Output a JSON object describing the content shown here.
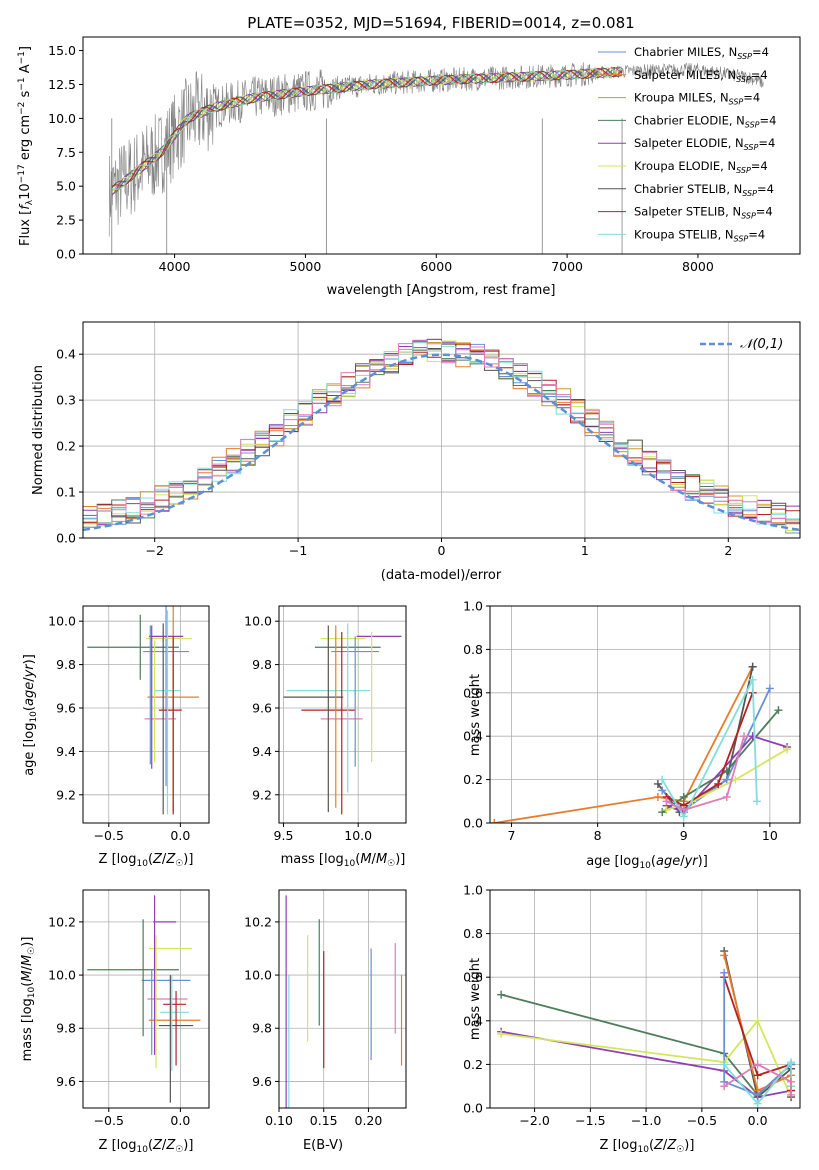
{
  "chart_data": [
    {
      "id": "spectrum",
      "type": "line",
      "title": "PLATE=0352, MJD=51694, FIBERID=0014, z=0.081",
      "xlabel": "wavelength [Angstrom, rest frame]",
      "ylabel": "Flux [f_λ 10^-17 erg cm^-2 s^-1 A^-1]",
      "xlim": [
        3300,
        8780
      ],
      "ylim": [
        0,
        16
      ],
      "xticks": [
        4000,
        5000,
        6000,
        7000,
        8000
      ],
      "yticks": [
        0.0,
        2.5,
        5.0,
        7.5,
        10.0,
        12.5,
        15.0
      ],
      "legend_position": "right",
      "legend": [
        {
          "label": "Chabrier MILES, N_SSP=4",
          "color": "#6b8fd6"
        },
        {
          "label": "Salpeter MILES, N_SSP=4",
          "color": "#e87c2b"
        },
        {
          "label": "Kroupa MILES, N_SSP=4",
          "color": "#c99a2e"
        },
        {
          "label": "Chabrier ELODIE, N_SSP=4",
          "color": "#4e7d5b"
        },
        {
          "label": "Salpeter ELODIE, N_SSP=4",
          "color": "#8e3fb0"
        },
        {
          "label": "Kroupa ELODIE, N_SSP=4",
          "color": "#d4e65c"
        },
        {
          "label": "Chabrier STELIB, N_SSP=4",
          "color": "#555555"
        },
        {
          "label": "Salpeter STELIB, N_SSP=4",
          "color": "#b22222"
        },
        {
          "label": "Kroupa STELIB, N_SSP=4",
          "color": "#80dede"
        }
      ],
      "data_color": "#808080",
      "continuum": {
        "x": [
          3500,
          3700,
          3900,
          4100,
          4300,
          4600,
          5000,
          5500,
          6000,
          6500,
          7000,
          7500,
          8000,
          8400,
          8500
        ],
        "y": [
          4.5,
          6.0,
          7.5,
          10.0,
          10.8,
          11.5,
          12.0,
          12.5,
          12.8,
          13.0,
          13.2,
          13.5,
          13.6,
          13.0,
          12.6
        ]
      }
    },
    {
      "id": "residuals",
      "type": "histogram",
      "xlabel": "(data-model)/error",
      "ylabel": "Normed distribution",
      "xlim": [
        -2.5,
        2.5
      ],
      "ylim": [
        0,
        0.47
      ],
      "xticks": [
        -2,
        -1,
        0,
        1,
        2
      ],
      "yticks": [
        0.0,
        0.1,
        0.2,
        0.3,
        0.4
      ],
      "grid": true,
      "legend_position": "top-right",
      "gaussian_label": "𝒩(0,1)",
      "gaussian_color": "#5b8fd6",
      "bin_width": 0.1
    },
    {
      "id": "age-vs-Z",
      "type": "errorbar",
      "xlabel": "Z [log10(Z/Z☉)]",
      "ylabel": "age [log10(age/yr)]",
      "xlim": [
        -0.68,
        0.2
      ],
      "ylim": [
        9.07,
        10.07
      ],
      "xticks": [
        -0.5,
        0.0
      ],
      "yticks": [
        9.2,
        9.4,
        9.6,
        9.8,
        10.0
      ],
      "points": [
        {
          "x": -0.33,
          "y": 9.88,
          "xerr": 0.32,
          "yerr": 0.0,
          "color": "#4e7d5b"
        },
        {
          "x": -0.1,
          "y": 9.86,
          "xerr": 0.16,
          "yerr": 0.62,
          "color": "#6b8fd6"
        },
        {
          "x": -0.05,
          "y": 9.65,
          "xerr": 0.18,
          "yerr": 0.53,
          "color": "#e87c2b"
        },
        {
          "x": -0.1,
          "y": 9.93,
          "xerr": 0.12,
          "yerr": 0.0,
          "color": "#8e3fb0"
        },
        {
          "x": -0.08,
          "y": 9.92,
          "xerr": 0.16,
          "yerr": 0.0,
          "color": "#d4e65c"
        },
        {
          "x": -0.07,
          "y": 9.59,
          "xerr": 0.08,
          "yerr": 0.0,
          "color": "#b22222"
        },
        {
          "x": -0.09,
          "y": 9.68,
          "xerr": 0.09,
          "yerr": 0.0,
          "color": "#80dede"
        },
        {
          "x": -0.14,
          "y": 9.55,
          "xerr": 0.11,
          "yerr": 0.0,
          "color": "#e07cb8"
        },
        {
          "x": -0.28,
          "y": 9.88,
          "xerr": 0.0,
          "yerr": 0.15,
          "color": "#4e7d5b"
        },
        {
          "x": -0.21,
          "y": 9.66,
          "xerr": 0.0,
          "yerr": 0.32,
          "color": "#6b8fd6"
        },
        {
          "x": -0.2,
          "y": 9.65,
          "xerr": 0.0,
          "yerr": 0.33,
          "color": "#8e3fb0"
        },
        {
          "x": -0.18,
          "y": 9.63,
          "xerr": 0.0,
          "yerr": 0.28,
          "color": "#d4e65c"
        },
        {
          "x": -0.12,
          "y": 9.55,
          "xerr": 0.0,
          "yerr": 0.44,
          "color": "#555555"
        },
        {
          "x": -0.05,
          "y": 9.52,
          "xerr": 0.0,
          "yerr": 0.41,
          "color": "#b22222"
        },
        {
          "x": -0.09,
          "y": 9.58,
          "xerr": 0.0,
          "yerr": 0.47,
          "color": "#80dede"
        }
      ]
    },
    {
      "id": "age-vs-mass",
      "type": "errorbar",
      "xlabel": "mass [log10(M/M☉)]",
      "ylabel": "",
      "xlim": [
        9.47,
        10.32
      ],
      "ylim": [
        9.07,
        10.07
      ],
      "xticks": [
        9.5,
        10.0
      ],
      "yticks": [
        9.2,
        9.4,
        9.6,
        9.8,
        10.0
      ],
      "points": [
        {
          "x": 9.98,
          "y": 9.86,
          "xerr": 0.16,
          "yerr": 0.0,
          "color": "#6b8fd6"
        },
        {
          "x": 10.14,
          "y": 9.93,
          "xerr": 0.15,
          "yerr": 0.0,
          "color": "#8e3fb0"
        },
        {
          "x": 9.9,
          "y": 9.92,
          "xerr": 0.15,
          "yerr": 0.0,
          "color": "#d4e65c"
        },
        {
          "x": 9.93,
          "y": 9.88,
          "xerr": 0.22,
          "yerr": 0.0,
          "color": "#4e7d5b"
        },
        {
          "x": 9.8,
          "y": 9.68,
          "xerr": 0.28,
          "yerr": 0.0,
          "color": "#80dede"
        },
        {
          "x": 9.7,
          "y": 9.65,
          "xerr": 0.2,
          "yerr": 0.0,
          "color": "#555555"
        },
        {
          "x": 9.8,
          "y": 9.59,
          "xerr": 0.18,
          "yerr": 0.0,
          "color": "#b22222"
        },
        {
          "x": 9.89,
          "y": 9.55,
          "xerr": 0.14,
          "yerr": 0.0,
          "color": "#e07cb8"
        },
        {
          "x": 9.8,
          "y": 9.55,
          "xerr": 0.0,
          "yerr": 0.43,
          "color": "#555555"
        },
        {
          "x": 9.85,
          "y": 9.56,
          "xerr": 0.0,
          "yerr": 0.42,
          "color": "#e87c2b"
        },
        {
          "x": 9.89,
          "y": 9.53,
          "xerr": 0.0,
          "yerr": 0.42,
          "color": "#b22222"
        },
        {
          "x": 9.93,
          "y": 9.6,
          "xerr": 0.0,
          "yerr": 0.39,
          "color": "#80dede"
        },
        {
          "x": 9.98,
          "y": 9.63,
          "xerr": 0.0,
          "yerr": 0.3,
          "color": "#6b8fd6"
        },
        {
          "x": 10.09,
          "y": 9.65,
          "xerr": 0.0,
          "yerr": 0.3,
          "color": "#d4e65c"
        }
      ]
    },
    {
      "id": "weight-vs-age",
      "type": "line",
      "xlabel": "age [log10(age/yr)]",
      "ylabel": "mass weight",
      "xlim": [
        6.75,
        10.35
      ],
      "ylim": [
        0.0,
        1.0
      ],
      "xticks": [
        7,
        8,
        9,
        10
      ],
      "yticks": [
        0.0,
        0.2,
        0.4,
        0.6,
        0.8,
        1.0
      ],
      "grid": true,
      "series": [
        {
          "color": "#e87c2b",
          "x": [
            6.8,
            8.7,
            9.0,
            9.8
          ],
          "y": [
            0.0,
            0.12,
            0.1,
            0.72
          ]
        },
        {
          "color": "#555555",
          "x": [
            8.7,
            8.95,
            9.5,
            9.8
          ],
          "y": [
            0.18,
            0.05,
            0.2,
            0.72
          ]
        },
        {
          "color": "#6b8fd6",
          "x": [
            8.75,
            9.0,
            9.5,
            10.0
          ],
          "y": [
            0.15,
            0.06,
            0.2,
            0.62
          ]
        },
        {
          "color": "#4e7d5b",
          "x": [
            8.75,
            9.0,
            9.5,
            10.1
          ],
          "y": [
            0.05,
            0.12,
            0.24,
            0.52
          ]
        },
        {
          "color": "#8e3fb0",
          "x": [
            8.8,
            9.0,
            9.8,
            10.2
          ],
          "y": [
            0.08,
            0.05,
            0.4,
            0.35
          ]
        },
        {
          "color": "#d4e65c",
          "x": [
            8.8,
            9.1,
            9.6,
            10.2
          ],
          "y": [
            0.06,
            0.1,
            0.2,
            0.34
          ]
        },
        {
          "color": "#b22222",
          "x": [
            8.8,
            9.0,
            9.4,
            9.8
          ],
          "y": [
            0.12,
            0.08,
            0.18,
            0.6
          ]
        },
        {
          "color": "#80dede",
          "x": [
            8.75,
            9.0,
            9.8,
            9.85
          ],
          "y": [
            0.2,
            0.03,
            0.66,
            0.1
          ]
        },
        {
          "color": "#e07cb8",
          "x": [
            8.8,
            9.0,
            9.5,
            9.7
          ],
          "y": [
            0.1,
            0.06,
            0.12,
            0.4
          ]
        }
      ]
    },
    {
      "id": "mass-vs-Z",
      "type": "errorbar",
      "xlabel": "Z [log10(Z/Z☉)]",
      "ylabel": "mass [log10(M/M☉)]",
      "xlim": [
        -0.68,
        0.2
      ],
      "ylim": [
        9.5,
        10.32
      ],
      "xticks": [
        -0.5,
        0.0
      ],
      "yticks": [
        9.6,
        9.8,
        10.0,
        10.2
      ],
      "points": [
        {
          "x": -0.33,
          "y": 10.02,
          "xerr": 0.32,
          "yerr": 0.0,
          "color": "#4e7d5b"
        },
        {
          "x": -0.11,
          "y": 10.2,
          "xerr": 0.08,
          "yerr": 0.0,
          "color": "#8e3fb0"
        },
        {
          "x": -0.07,
          "y": 10.1,
          "xerr": 0.15,
          "yerr": 0.0,
          "color": "#d4e65c"
        },
        {
          "x": -0.1,
          "y": 9.98,
          "xerr": 0.17,
          "yerr": 0.0,
          "color": "#6b8fd6"
        },
        {
          "x": -0.09,
          "y": 9.91,
          "xerr": 0.14,
          "yerr": 0.0,
          "color": "#e07cb8"
        },
        {
          "x": -0.04,
          "y": 9.89,
          "xerr": 0.08,
          "yerr": 0.0,
          "color": "#b22222"
        },
        {
          "x": -0.04,
          "y": 9.86,
          "xerr": 0.1,
          "yerr": 0.0,
          "color": "#80dede"
        },
        {
          "x": -0.04,
          "y": 9.83,
          "xerr": 0.18,
          "yerr": 0.0,
          "color": "#e87c2b"
        },
        {
          "x": -0.03,
          "y": 9.81,
          "xerr": 0.12,
          "yerr": 0.0,
          "color": "#555555"
        },
        {
          "x": -0.26,
          "y": 9.99,
          "xerr": 0.0,
          "yerr": 0.22,
          "color": "#4e7d5b"
        },
        {
          "x": -0.2,
          "y": 9.86,
          "xerr": 0.0,
          "yerr": 0.16,
          "color": "#6b8fd6"
        },
        {
          "x": -0.18,
          "y": 10.0,
          "xerr": 0.0,
          "yerr": 0.3,
          "color": "#8e3fb0"
        },
        {
          "x": -0.17,
          "y": 9.9,
          "xerr": 0.0,
          "yerr": 0.25,
          "color": "#d4e65c"
        },
        {
          "x": -0.07,
          "y": 9.76,
          "xerr": 0.0,
          "yerr": 0.24,
          "color": "#555555"
        },
        {
          "x": -0.03,
          "y": 9.8,
          "xerr": 0.0,
          "yerr": 0.14,
          "color": "#b22222"
        },
        {
          "x": -0.06,
          "y": 9.82,
          "xerr": 0.0,
          "yerr": 0.18,
          "color": "#80dede"
        }
      ]
    },
    {
      "id": "mass-vs-EBV",
      "type": "errorbar",
      "xlabel": "E(B-V)",
      "ylabel": "",
      "xlim": [
        0.1,
        0.242
      ],
      "ylim": [
        9.5,
        10.32
      ],
      "xticks": [
        0.1,
        0.15,
        0.2
      ],
      "xtick_labels": [
        "0.10",
        "0.15",
        "0.20"
      ],
      "yticks": [
        9.6,
        9.8,
        10.0,
        10.2
      ],
      "points": [
        {
          "x": 0.108,
          "y": 9.9,
          "xerr": 0.0,
          "yerr": 0.4,
          "color": "#8e3fb0"
        },
        {
          "x": 0.111,
          "y": 9.75,
          "xerr": 0.0,
          "yerr": 0.25,
          "color": "#80dede"
        },
        {
          "x": 0.132,
          "y": 9.95,
          "xerr": 0.0,
          "yerr": 0.2,
          "color": "#d4e65c"
        },
        {
          "x": 0.145,
          "y": 10.01,
          "xerr": 0.0,
          "yerr": 0.2,
          "color": "#4e7d5b"
        },
        {
          "x": 0.15,
          "y": 9.87,
          "xerr": 0.0,
          "yerr": 0.22,
          "color": "#b22222"
        },
        {
          "x": 0.203,
          "y": 9.89,
          "xerr": 0.0,
          "yerr": 0.21,
          "color": "#6b8fd6"
        },
        {
          "x": 0.23,
          "y": 9.95,
          "xerr": 0.0,
          "yerr": 0.17,
          "color": "#e07cb8"
        },
        {
          "x": 0.237,
          "y": 9.83,
          "xerr": 0.0,
          "yerr": 0.17,
          "color": "#e87c2b"
        }
      ]
    },
    {
      "id": "weight-vs-Z",
      "type": "line",
      "xlabel": "Z [log10(Z/Z☉)]",
      "ylabel": "mass weight",
      "xlim": [
        -2.4,
        0.38
      ],
      "ylim": [
        0.0,
        1.0
      ],
      "xticks": [
        -2.0,
        -1.5,
        -1.0,
        -0.5,
        0.0
      ],
      "yticks": [
        0.0,
        0.2,
        0.4,
        0.6,
        0.8,
        1.0
      ],
      "grid": true,
      "series": [
        {
          "color": "#4e7d5b",
          "x": [
            -2.3,
            -0.3,
            0.0,
            0.3
          ],
          "y": [
            0.52,
            0.25,
            0.06,
            0.2
          ]
        },
        {
          "color": "#8e3fb0",
          "x": [
            -2.3,
            -0.3,
            0.0,
            0.3
          ],
          "y": [
            0.35,
            0.17,
            0.05,
            0.08
          ]
        },
        {
          "color": "#d4e65c",
          "x": [
            -2.3,
            -0.3,
            0.0,
            0.3
          ],
          "y": [
            0.34,
            0.21,
            0.4,
            0.05
          ]
        },
        {
          "color": "#555555",
          "x": [
            -0.3,
            0.0,
            0.3,
            0.3
          ],
          "y": [
            0.72,
            0.05,
            0.18,
            0.05
          ]
        },
        {
          "color": "#e87c2b",
          "x": [
            -0.3,
            0.0,
            0.3,
            0.3
          ],
          "y": [
            0.7,
            0.08,
            0.15,
            0.1
          ]
        },
        {
          "color": "#b22222",
          "x": [
            -0.3,
            0.0,
            0.3,
            0.3
          ],
          "y": [
            0.6,
            0.15,
            0.2,
            0.08
          ]
        },
        {
          "color": "#6b8fd6",
          "x": [
            -0.3,
            -0.3,
            0.0,
            0.3
          ],
          "y": [
            0.62,
            0.12,
            0.06,
            0.2
          ]
        },
        {
          "color": "#80dede",
          "x": [
            -0.3,
            0.0,
            0.3,
            0.3
          ],
          "y": [
            0.2,
            0.02,
            0.21,
            0.1
          ]
        },
        {
          "color": "#e07cb8",
          "x": [
            -0.3,
            0.0,
            0.3,
            0.3
          ],
          "y": [
            0.1,
            0.2,
            0.12,
            0.06
          ]
        }
      ]
    }
  ]
}
